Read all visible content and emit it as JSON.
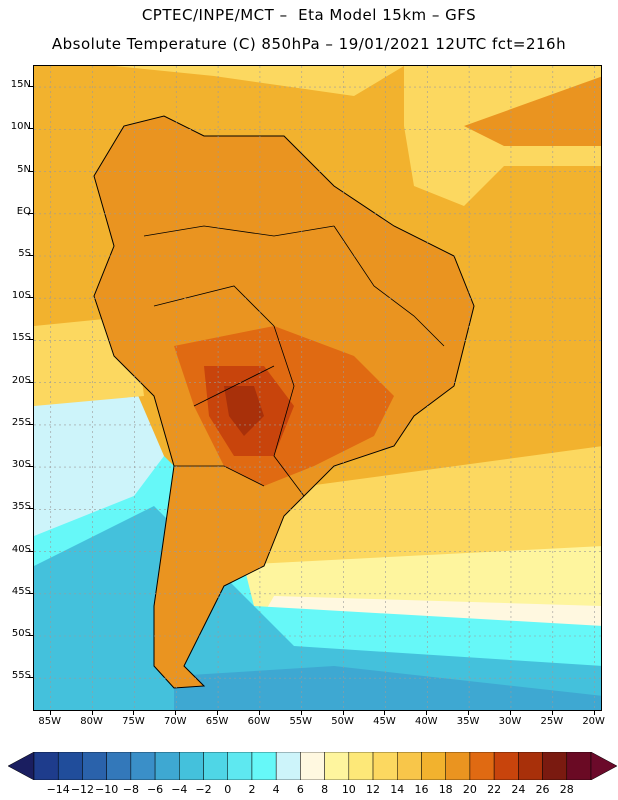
{
  "header": {
    "line1": "CPTEC/INPE/MCT –  Eta Model 15km – GFS",
    "line2": "Absolute Temperature (C) 850hPa – 19/01/2021 12UTC fct=216h"
  },
  "axes": {
    "lat_labels": [
      "15N",
      "10N",
      "5N",
      "EQ",
      "5S",
      "10S",
      "15S",
      "20S",
      "25S",
      "30S",
      "35S",
      "40S",
      "45S",
      "50S",
      "55S"
    ],
    "lat_values": [
      15,
      10,
      5,
      0,
      -5,
      -10,
      -15,
      -20,
      -25,
      -30,
      -35,
      -40,
      -45,
      -50,
      -55
    ],
    "lon_labels": [
      "85W",
      "80W",
      "75W",
      "70W",
      "65W",
      "60W",
      "55W",
      "50W",
      "45W",
      "40W",
      "35W",
      "30W",
      "25W",
      "20W"
    ],
    "lon_values": [
      -85,
      -80,
      -75,
      -70,
      -65,
      -60,
      -55,
      -50,
      -45,
      -40,
      -35,
      -30,
      -25,
      -20
    ]
  },
  "colorbar": {
    "labels": [
      "-14",
      "-12",
      "-10",
      "-8",
      "-6",
      "-4",
      "-2",
      "0",
      "2",
      "4",
      "6",
      "8",
      "10",
      "12",
      "14",
      "16",
      "18",
      "20",
      "22",
      "24",
      "26",
      "28"
    ],
    "colors": [
      "#1e3c8c",
      "#204d9b",
      "#2a62ab",
      "#3378ba",
      "#3a8fc8",
      "#3ea8d2",
      "#44c1dc",
      "#4fd6e6",
      "#5ee8f0",
      "#66f8f8",
      "#cdf4fa",
      "#fff8e0",
      "#fef59e",
      "#fde878",
      "#fcd860",
      "#f8c64a",
      "#f2b22e",
      "#ea9420",
      "#e06a12",
      "#c8440c",
      "#a8300a",
      "#7a1a10",
      "#6a0a24"
    ],
    "under_color": "#1a1e60",
    "over_color": "#6b0a2a"
  },
  "map": {
    "ocean_north_color": "#f2b22e",
    "land_color": "#ea9420",
    "hot_core_color": "#c8440c",
    "southern_ocean_colors": [
      "#66f8f8",
      "#44c1dc",
      "#3ea8d2"
    ]
  }
}
